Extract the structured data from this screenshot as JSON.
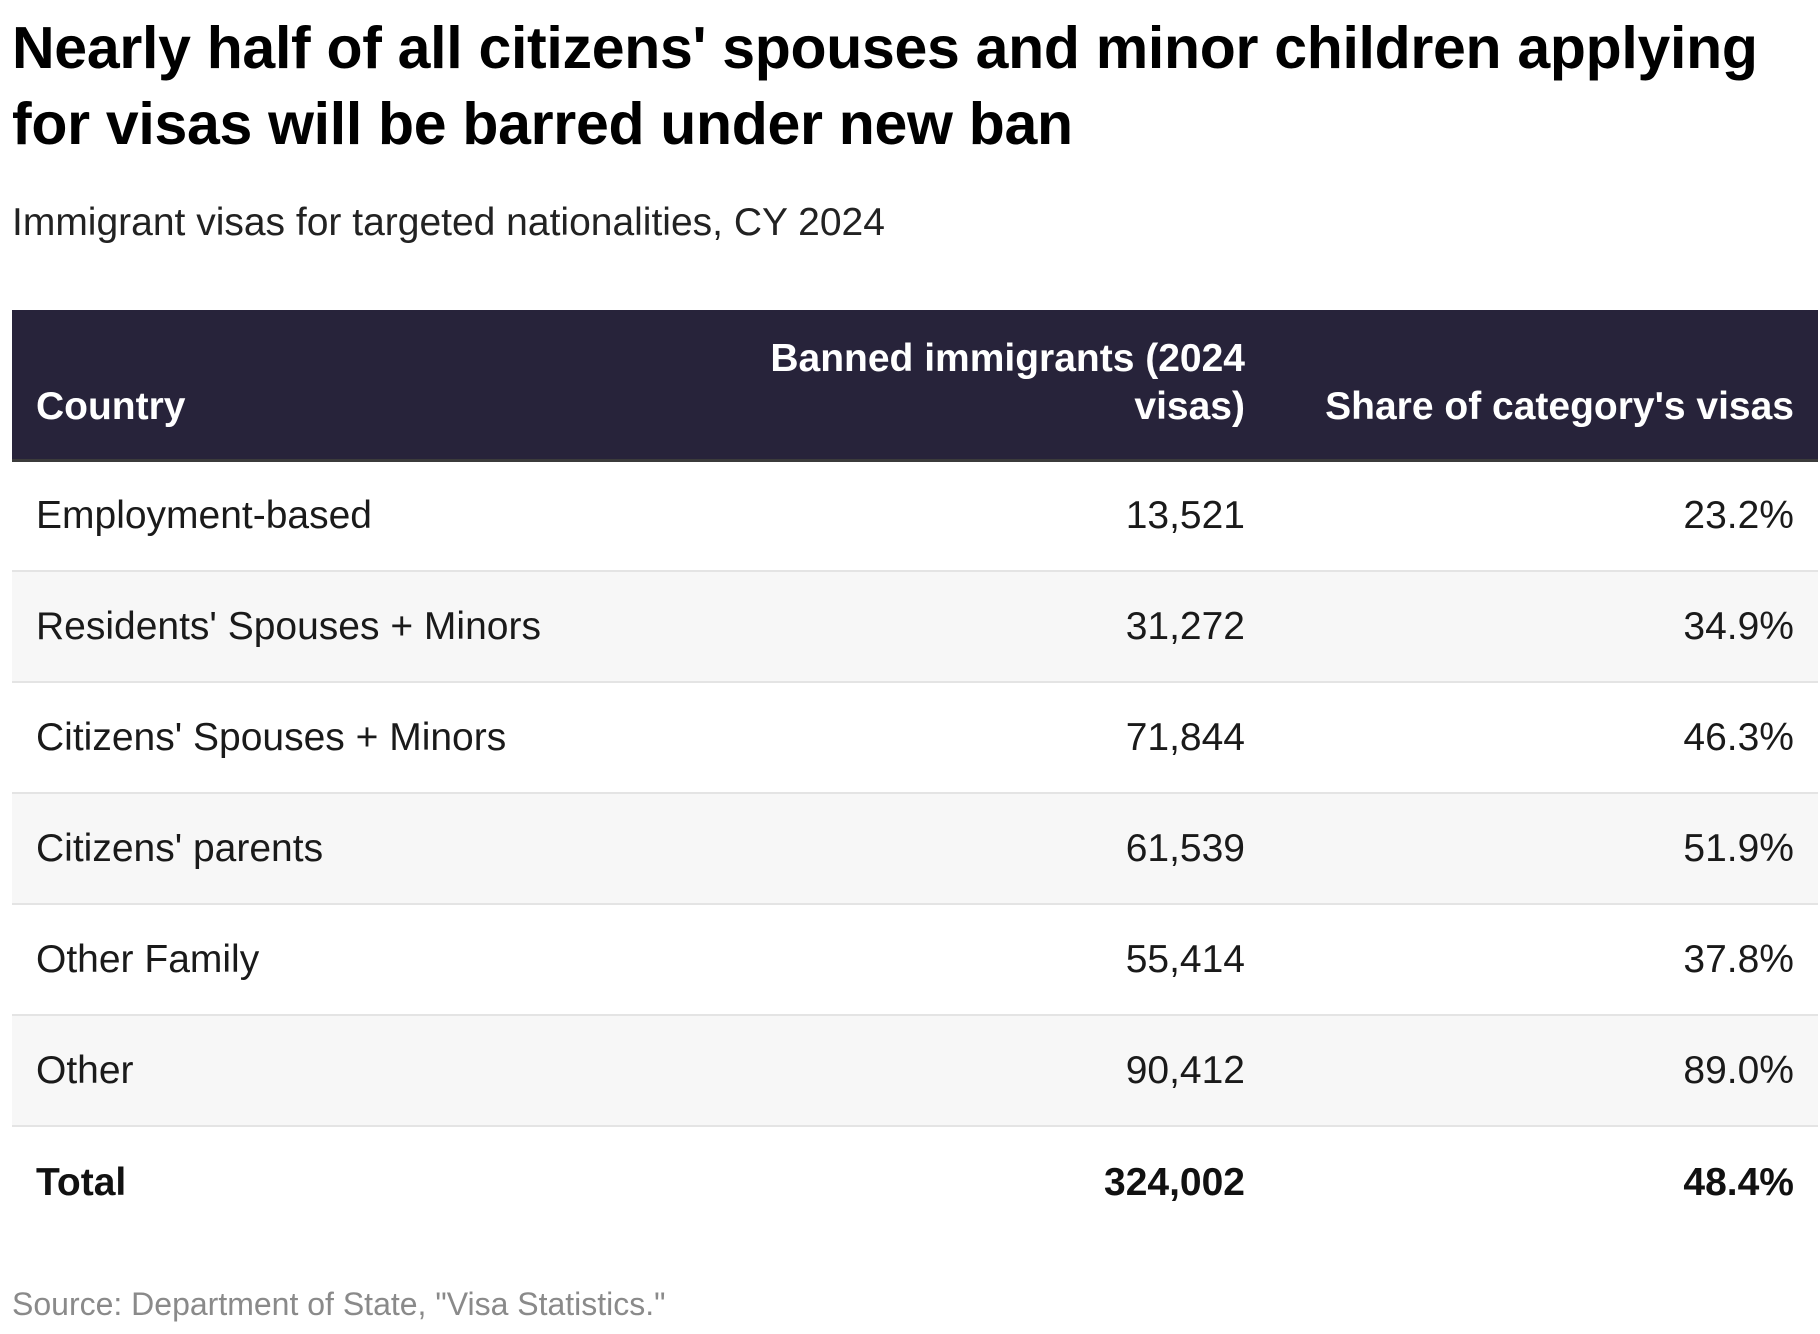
{
  "title": "Nearly half of all citizens' spouses and minor children applying for visas will be barred under new ban",
  "subtitle": "Immigrant visas for targeted nationalities, CY 2024",
  "source": "Source: Department of State, \"Visa Statistics.\"",
  "colors": {
    "header_bg": "#27233a",
    "header_text": "#ffffff",
    "row_alt_bg": "#f7f7f7",
    "source_text": "#8a8a8a"
  },
  "chart_data": {
    "type": "table",
    "columns": [
      "Country",
      "Banned immigrants (2024 visas)",
      "Share of category's visas"
    ],
    "rows": [
      [
        "Employment-based",
        "13,521",
        "23.2%"
      ],
      [
        "Residents' Spouses + Minors",
        "31,272",
        "34.9%"
      ],
      [
        "Citizens' Spouses + Minors",
        "71,844",
        "46.3%"
      ],
      [
        "Citizens' parents",
        "61,539",
        "51.9%"
      ],
      [
        "Other Family",
        "55,414",
        "37.8%"
      ],
      [
        "Other",
        "90,412",
        "89.0%"
      ]
    ],
    "total": [
      "Total",
      "324,002",
      "48.4%"
    ]
  }
}
